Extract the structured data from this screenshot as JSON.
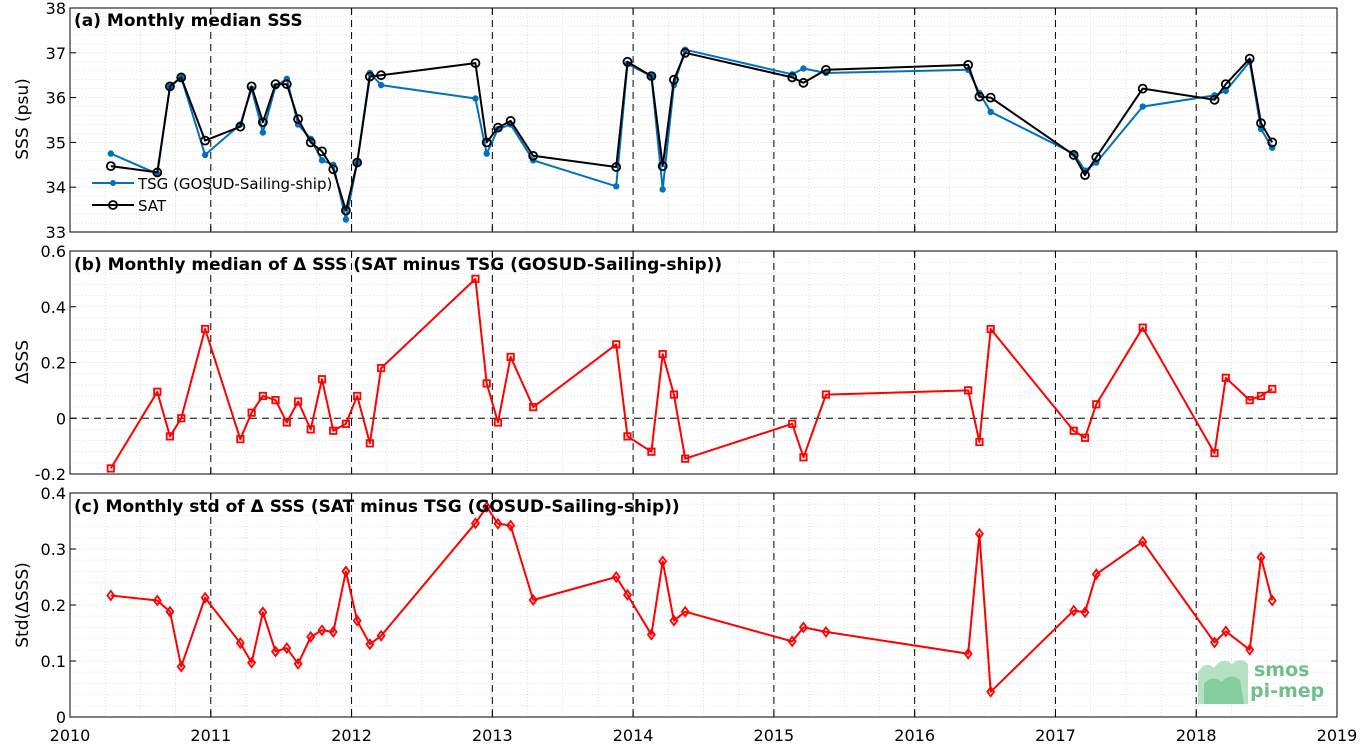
{
  "colors": {
    "tsg": "#0072BD",
    "sat": "#000000",
    "delta": "#FF0000",
    "grid": "#d9d9d9",
    "logo": "#6fbf8a"
  },
  "logo": {
    "line1": "smos",
    "line2": "pi-mep"
  },
  "x_axis": {
    "range": [
      2010,
      2019
    ],
    "ticks": [
      2010,
      2011,
      2012,
      2013,
      2014,
      2015,
      2016,
      2017,
      2018,
      2019
    ],
    "tick_labels": [
      "2010",
      "2011",
      "2012",
      "2013",
      "2014",
      "2015",
      "2016",
      "2017",
      "2018",
      "2019"
    ],
    "year_lines": [
      2011,
      2012,
      2013,
      2014,
      2015,
      2016,
      2017,
      2018
    ]
  },
  "chart_data": [
    {
      "type": "line",
      "title": "(a) Monthly median SSS",
      "ylabel": "SSS (psu)",
      "ylim": [
        33,
        38
      ],
      "yticks": [
        33,
        34,
        35,
        36,
        37,
        38
      ],
      "ytick_labels": [
        "33",
        "34",
        "35",
        "36",
        "37",
        "38"
      ],
      "grid": true,
      "legend": "left-bottom",
      "series": [
        {
          "name": "TSG (GOSUD-Sailing-ship)",
          "marker": "dot",
          "x": [
            2010.29,
            2010.62,
            2010.71,
            2010.79,
            2010.96,
            2011.21,
            2011.29,
            2011.37,
            2011.46,
            2011.54,
            2011.62,
            2011.71,
            2011.79,
            2011.87,
            2011.96,
            2012.04,
            2012.13,
            2012.21,
            2012.88,
            2012.96,
            2013.04,
            2013.13,
            2013.29,
            2013.88,
            2013.96,
            2014.13,
            2014.21,
            2014.29,
            2014.37,
            2015.13,
            2015.21,
            2015.37,
            2016.38,
            2016.46,
            2016.54,
            2017.13,
            2017.21,
            2017.29,
            2017.62,
            2018.13,
            2018.21,
            2018.38,
            2018.46,
            2018.54
          ],
          "y": [
            34.75,
            34.3,
            36.25,
            36.45,
            34.72,
            35.4,
            36.2,
            35.22,
            36.25,
            36.42,
            35.4,
            35.08,
            34.6,
            34.5,
            33.28,
            34.55,
            36.55,
            36.28,
            35.98,
            34.75,
            35.3,
            35.4,
            34.6,
            34.02,
            36.75,
            36.48,
            33.95,
            36.28,
            37.07,
            36.52,
            36.65,
            36.55,
            36.62,
            36.1,
            35.68,
            34.75,
            34.37,
            34.55,
            35.8,
            36.05,
            36.15,
            36.8,
            35.3,
            34.88
          ]
        },
        {
          "name": "SAT",
          "marker": "circle",
          "x": [
            2010.29,
            2010.62,
            2010.71,
            2010.79,
            2010.96,
            2011.21,
            2011.29,
            2011.37,
            2011.46,
            2011.54,
            2011.62,
            2011.71,
            2011.79,
            2011.87,
            2011.96,
            2012.04,
            2012.13,
            2012.21,
            2012.88,
            2012.96,
            2013.04,
            2013.13,
            2013.29,
            2013.88,
            2013.96,
            2014.13,
            2014.21,
            2014.29,
            2014.37,
            2015.13,
            2015.21,
            2015.37,
            2016.38,
            2016.46,
            2016.54,
            2017.13,
            2017.21,
            2017.29,
            2017.62,
            2018.13,
            2018.21,
            2018.38,
            2018.46,
            2018.54
          ],
          "y": [
            34.47,
            34.33,
            36.25,
            36.45,
            35.04,
            35.35,
            36.25,
            35.45,
            36.3,
            36.3,
            35.52,
            35.0,
            34.8,
            34.4,
            33.48,
            34.55,
            36.47,
            36.5,
            36.77,
            35.0,
            35.33,
            35.48,
            34.7,
            34.45,
            36.8,
            36.48,
            34.47,
            36.4,
            37.0,
            36.45,
            36.33,
            36.62,
            36.73,
            36.02,
            36.0,
            34.72,
            34.27,
            34.67,
            36.2,
            35.95,
            36.3,
            36.87,
            35.43,
            35.0
          ]
        }
      ]
    },
    {
      "type": "line",
      "title": "(b) Monthly median of Δ SSS (SAT minus TSG (GOSUD-Sailing-ship))",
      "ylabel": "ΔSSS",
      "ylim": [
        -0.2,
        0.6
      ],
      "yticks": [
        -0.2,
        0,
        0.2,
        0.4,
        0.6
      ],
      "ytick_labels": [
        "-0.2",
        "0",
        "0.2",
        "0.4",
        "0.6"
      ],
      "zero_line": true,
      "grid": true,
      "series": [
        {
          "marker": "square",
          "x": [
            2010.29,
            2010.62,
            2010.71,
            2010.79,
            2010.96,
            2011.21,
            2011.29,
            2011.37,
            2011.46,
            2011.54,
            2011.62,
            2011.71,
            2011.79,
            2011.87,
            2011.96,
            2012.04,
            2012.13,
            2012.21,
            2012.88,
            2012.96,
            2013.04,
            2013.13,
            2013.29,
            2013.88,
            2013.96,
            2014.13,
            2014.21,
            2014.29,
            2014.37,
            2015.13,
            2015.21,
            2015.37,
            2016.38,
            2016.46,
            2016.54,
            2017.13,
            2017.21,
            2017.29,
            2017.62,
            2018.13,
            2018.21,
            2018.38,
            2018.46,
            2018.54
          ],
          "y": [
            -0.18,
            0.095,
            -0.065,
            0.0,
            0.32,
            -0.075,
            0.02,
            0.08,
            0.065,
            -0.015,
            0.06,
            -0.04,
            0.14,
            -0.045,
            -0.02,
            0.08,
            -0.09,
            0.18,
            0.5,
            0.125,
            -0.015,
            0.22,
            0.04,
            0.265,
            -0.065,
            -0.12,
            0.23,
            0.085,
            -0.145,
            -0.02,
            -0.14,
            0.085,
            0.1,
            -0.085,
            0.32,
            -0.045,
            -0.07,
            0.05,
            0.325,
            -0.125,
            0.145,
            0.065,
            0.08,
            0.105
          ]
        }
      ]
    },
    {
      "type": "line",
      "title": "(c) Monthly std of Δ SSS (SAT minus TSG (GOSUD-Sailing-ship))",
      "ylabel": "Std(ΔSSS)",
      "ylim": [
        0,
        0.4
      ],
      "yticks": [
        0,
        0.1,
        0.2,
        0.3,
        0.4
      ],
      "ytick_labels": [
        "0",
        "0.1",
        "0.2",
        "0.3",
        "0.4"
      ],
      "grid": true,
      "series": [
        {
          "marker": "diamond",
          "x": [
            2010.29,
            2010.62,
            2010.71,
            2010.79,
            2010.96,
            2011.21,
            2011.29,
            2011.37,
            2011.46,
            2011.54,
            2011.62,
            2011.71,
            2011.79,
            2011.87,
            2011.96,
            2012.04,
            2012.13,
            2012.21,
            2012.88,
            2012.96,
            2013.04,
            2013.13,
            2013.29,
            2013.88,
            2013.96,
            2014.13,
            2014.21,
            2014.29,
            2014.37,
            2015.13,
            2015.21,
            2015.37,
            2016.38,
            2016.46,
            2016.54,
            2017.13,
            2017.21,
            2017.29,
            2017.62,
            2018.13,
            2018.21,
            2018.38,
            2018.46,
            2018.54
          ],
          "y": [
            0.217,
            0.208,
            0.188,
            0.09,
            0.213,
            0.132,
            0.097,
            0.187,
            0.117,
            0.123,
            0.095,
            0.143,
            0.155,
            0.152,
            0.26,
            0.172,
            0.13,
            0.145,
            0.346,
            0.375,
            0.345,
            0.342,
            0.209,
            0.25,
            0.218,
            0.147,
            0.278,
            0.172,
            0.188,
            0.135,
            0.16,
            0.152,
            0.113,
            0.327,
            0.045,
            0.19,
            0.187,
            0.255,
            0.313,
            0.133,
            0.153,
            0.12,
            0.285,
            0.208
          ]
        }
      ]
    }
  ]
}
